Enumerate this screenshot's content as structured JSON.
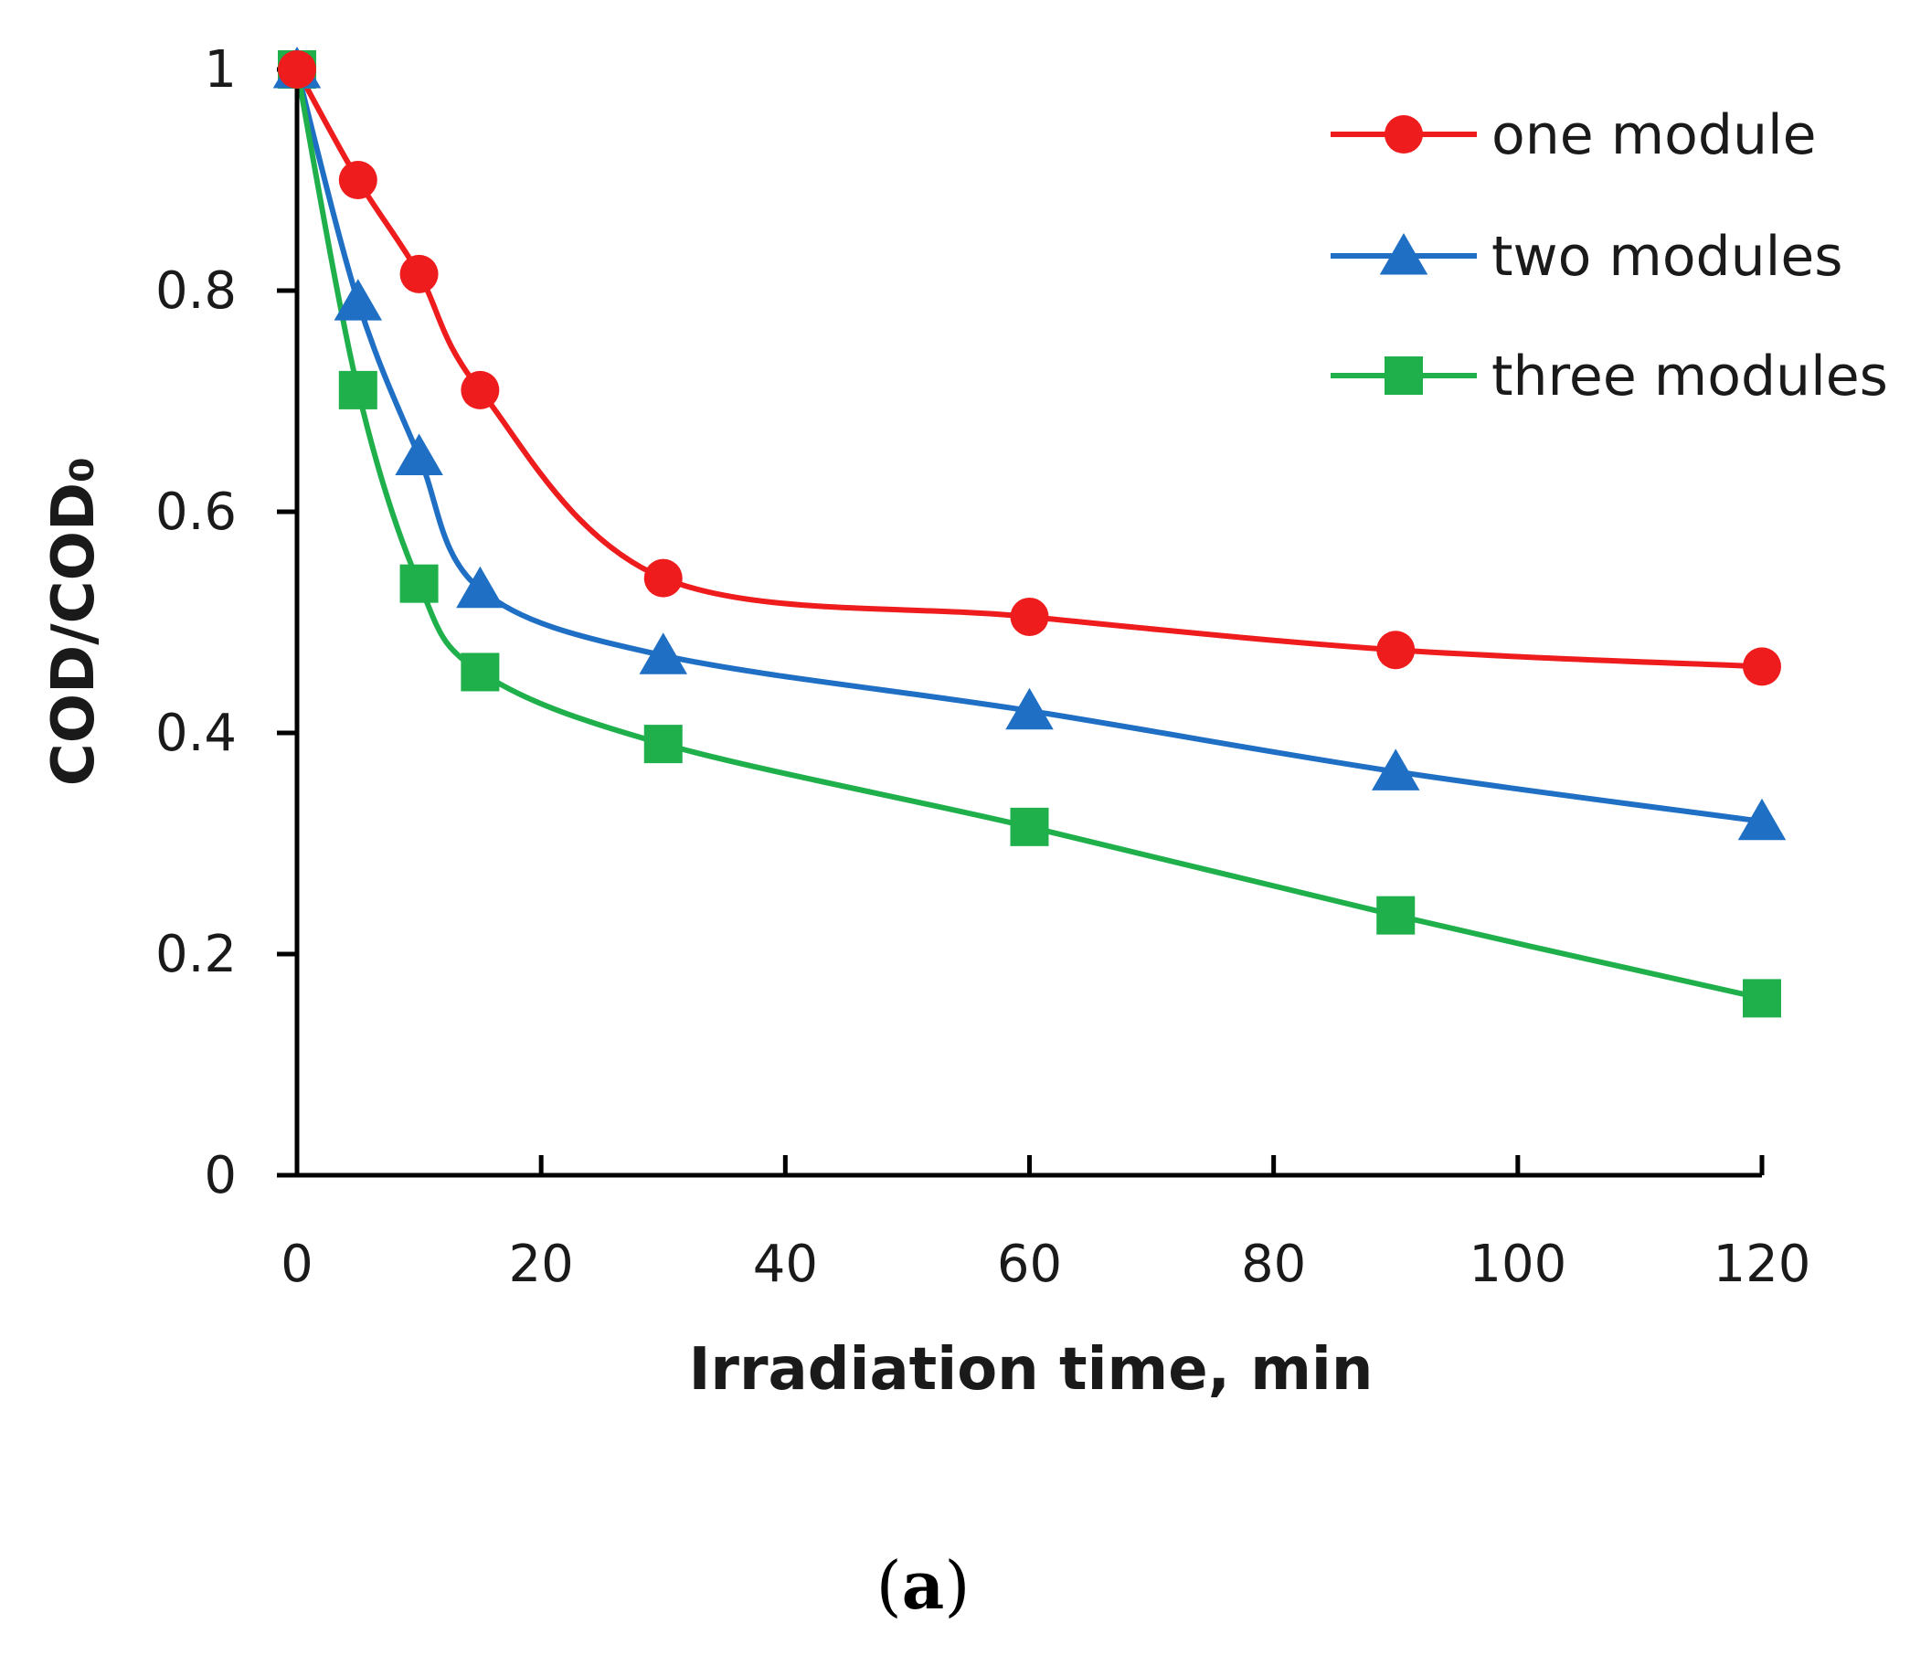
{
  "chart_data": {
    "type": "line",
    "title": "",
    "xlabel": "Irradiation  time, min",
    "ylabel": "COD/COD₀",
    "xlim": [
      0,
      120
    ],
    "ylim": [
      0,
      1
    ],
    "x_ticks": [
      0,
      20,
      40,
      60,
      80,
      100,
      120
    ],
    "x_tick_labels": [
      "0",
      "20",
      "40",
      "60",
      "80",
      "100",
      "120"
    ],
    "y_ticks": [
      0,
      0.2,
      0.4,
      0.6,
      0.8,
      1
    ],
    "y_tick_labels": [
      "0",
      "0.2",
      "0.4",
      "0.6",
      "0.8",
      "1"
    ],
    "grid": false,
    "legend_position": "top-right",
    "x": [
      0,
      5,
      10,
      15,
      30,
      60,
      90,
      120
    ],
    "series": [
      {
        "name": "one module",
        "color": "#ee1c1c",
        "marker": "circle",
        "values": [
          1.0,
          0.9,
          0.815,
          0.71,
          0.54,
          0.505,
          0.475,
          0.46
        ]
      },
      {
        "name": "two modules",
        "color": "#1f6fc5",
        "marker": "triangle",
        "values": [
          1.0,
          0.79,
          0.65,
          0.53,
          0.47,
          0.42,
          0.365,
          0.32
        ]
      },
      {
        "name": "three modules",
        "color": "#1fb04c",
        "marker": "square",
        "values": [
          1.0,
          0.71,
          0.535,
          0.455,
          0.39,
          0.315,
          0.235,
          0.16
        ]
      }
    ]
  },
  "caption": {
    "open": "(",
    "letter": "a",
    "close": ")"
  }
}
